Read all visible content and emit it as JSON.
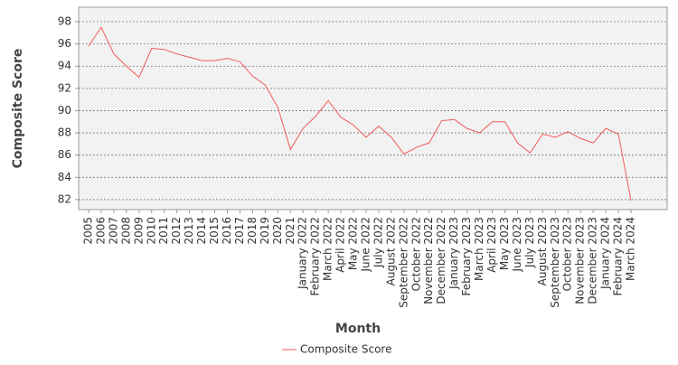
{
  "chart_data": {
    "type": "line",
    "x_label": "Month",
    "y_label": "Composite Score",
    "categories": [
      "2005",
      "2006",
      "2007",
      "2008",
      "2009",
      "2010",
      "2011",
      "2012",
      "2013",
      "2014",
      "2015",
      "2016",
      "2017",
      "2018",
      "2019",
      "2020",
      "2021",
      "January 2022",
      "February 2022",
      "March 2022",
      "April 2022",
      "May 2022",
      "June 2022",
      "July 2022",
      "August 2022",
      "September 2022",
      "October 2022",
      "November 2022",
      "December 2022",
      "January 2023",
      "February 2023",
      "March 2023",
      "April 2023",
      "May 2023",
      "June 2023",
      "July 2023",
      "August 2023",
      "September 2023",
      "October 2023",
      "November 2023",
      "December 2023",
      "January 2024",
      "February 2024",
      "March 2024"
    ],
    "series": [
      {
        "name": "Composite Score",
        "color": "#f05a5a",
        "values": [
          95.8,
          97.5,
          95.1,
          94.0,
          93.0,
          95.6,
          95.5,
          95.1,
          94.8,
          94.5,
          94.5,
          94.7,
          94.4,
          93.1,
          92.3,
          90.3,
          86.5,
          88.4,
          89.5,
          90.9,
          89.4,
          88.7,
          87.6,
          88.6,
          87.6,
          86.1,
          86.7,
          87.1,
          89.1,
          89.2,
          88.4,
          88.0,
          89.0,
          89.0,
          87.1,
          86.2,
          87.9,
          87.6,
          88.1,
          87.5,
          87.1,
          88.4,
          87.9,
          81.9
        ]
      }
    ],
    "ylim": [
      81.1,
      99.3
    ],
    "yticks": [
      82,
      84,
      86,
      88,
      90,
      92,
      94,
      96,
      98
    ],
    "grid": true
  }
}
